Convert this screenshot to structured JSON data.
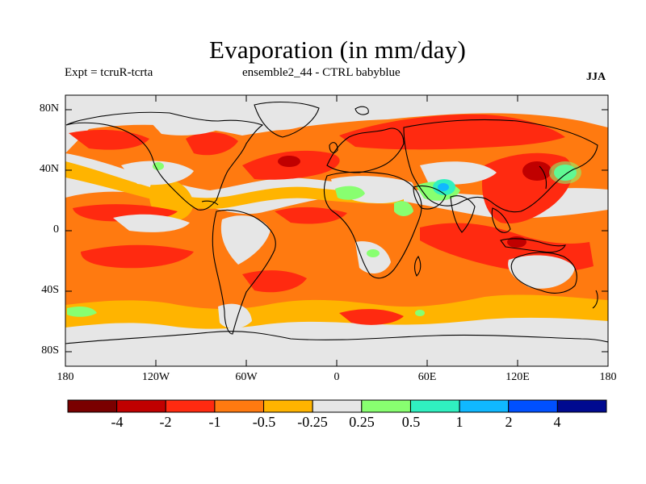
{
  "title": "Evaporation (in mm/day)",
  "subtitle_left": "Expt = tcruR-tcrta",
  "subtitle_center": "ensemble2_44 - CTRL babyblue",
  "season": "JJA",
  "map": {
    "lat_ticks": [
      "80N",
      "40N",
      "0",
      "40S",
      "80S"
    ],
    "lon_ticks": [
      "180",
      "120W",
      "60W",
      "0",
      "60E",
      "120E",
      "180"
    ],
    "ocean_fill": "#e6e6e6"
  },
  "colorbar": {
    "colors": [
      "#7a0000",
      "#c00000",
      "#ff2a10",
      "#ff7a10",
      "#ffb400",
      "#e6e6e6",
      "#88ff70",
      "#30f0c0",
      "#10b8ff",
      "#0050ff",
      "#000a90"
    ],
    "labels": [
      "-4",
      "-2",
      "-1",
      "-0.5",
      "-0.25",
      "0.25",
      "0.5",
      "1",
      "2",
      "4"
    ]
  }
}
